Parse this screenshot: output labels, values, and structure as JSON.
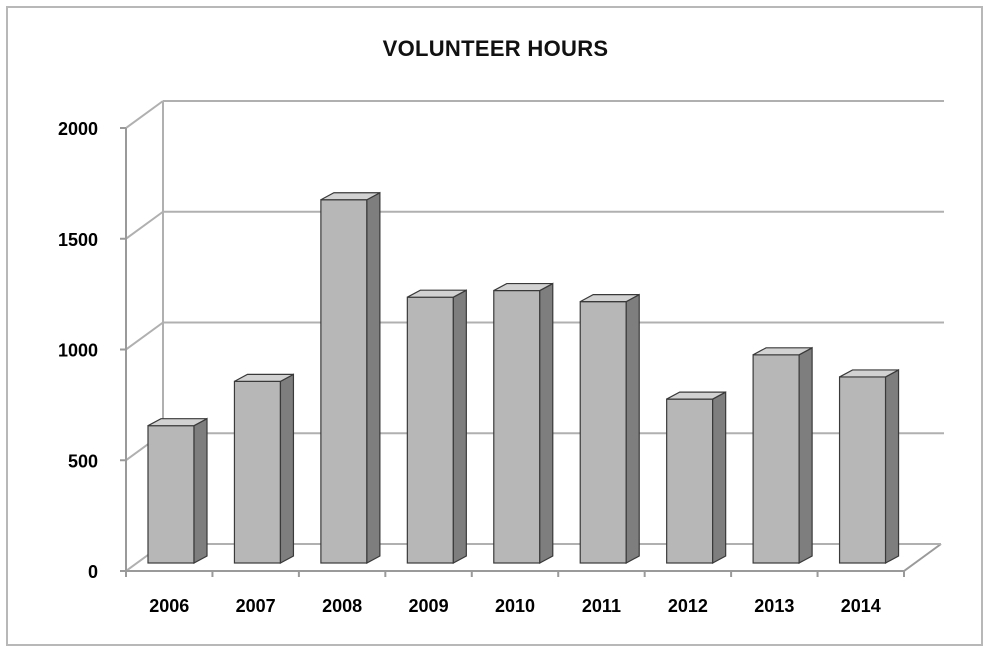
{
  "chart_data": {
    "type": "bar",
    "title": "VOLUNTEER HOURS",
    "xlabel": "",
    "ylabel": "",
    "categories": [
      "2006",
      "2007",
      "2008",
      "2009",
      "2010",
      "2011",
      "2012",
      "2013",
      "2014"
    ],
    "values": [
      620,
      820,
      1640,
      1200,
      1230,
      1180,
      740,
      940,
      840
    ],
    "ylim": [
      0,
      2000
    ],
    "yticks": [
      "0",
      "500",
      "1000",
      "1500",
      "2000"
    ],
    "grid": true,
    "legend": "none",
    "style": "3d-column",
    "colors": {
      "bar_front": "#b7b7b7",
      "bar_side": "#7e7e7e",
      "bar_top": "#d2d2d2",
      "grid": "#b0b0b0",
      "axis": "#9a9a9a"
    }
  }
}
